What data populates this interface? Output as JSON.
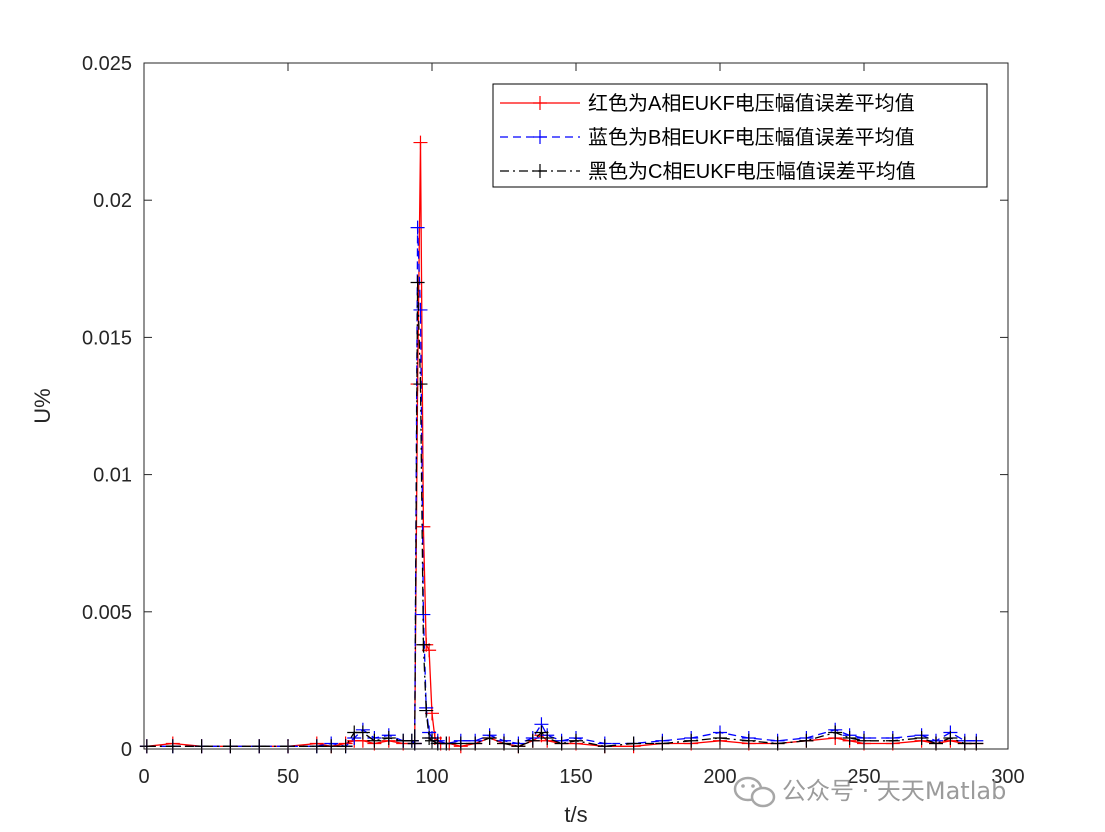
{
  "chart_data": {
    "type": "line",
    "xlabel": "t/s",
    "ylabel": "U%",
    "xlim": [
      0,
      300
    ],
    "ylim": [
      0,
      0.025
    ],
    "xticks": [
      "0",
      "50",
      "100",
      "150",
      "200",
      "250",
      "300"
    ],
    "yticks": [
      "0",
      "0.005",
      "0.01",
      "0.015",
      "0.02",
      "0.025"
    ],
    "grid": false,
    "legend_position": "top-right",
    "marker": "+",
    "series": [
      {
        "name": "红色为A相EUKF电压幅值误差平均值",
        "color": "#ff0000",
        "line_style": "solid",
        "x": [
          1,
          10,
          20,
          30,
          40,
          50,
          60,
          65,
          70,
          73,
          76,
          80,
          85,
          90,
          94,
          95,
          96,
          97,
          98,
          99,
          100,
          101,
          103,
          106,
          110,
          115,
          120,
          125,
          130,
          135,
          138,
          140,
          145,
          150,
          160,
          170,
          180,
          190,
          200,
          210,
          220,
          230,
          240,
          245,
          250,
          260,
          270,
          275,
          280,
          285,
          289
        ],
        "y": [
          0.0001,
          0.0002,
          0.0001,
          0.0001,
          0.0001,
          0.0001,
          0.0002,
          0.0001,
          0.0002,
          0.0003,
          0.0003,
          0.0002,
          0.0003,
          0.0002,
          0.0002,
          0.0133,
          0.0221,
          0.0081,
          0.0038,
          0.0036,
          0.0013,
          0.0004,
          0.0002,
          0.0002,
          0.0001,
          0.0002,
          0.0004,
          0.0002,
          0.0001,
          0.0003,
          0.0005,
          0.0003,
          0.0002,
          0.0002,
          0.0001,
          0.0001,
          0.0002,
          0.0002,
          0.0003,
          0.0002,
          0.0002,
          0.0003,
          0.0004,
          0.0003,
          0.0002,
          0.0002,
          0.0003,
          0.0002,
          0.0003,
          0.0002,
          0.0002
        ]
      },
      {
        "name": "蓝色为B相EUKF电压幅值误差平均值",
        "color": "#0000ff",
        "line_style": "dashed",
        "x": [
          1,
          10,
          20,
          30,
          40,
          50,
          60,
          65,
          70,
          73,
          76,
          80,
          85,
          90,
          93,
          94,
          95,
          96,
          97,
          98,
          99,
          100,
          102,
          105,
          110,
          115,
          120,
          125,
          130,
          135,
          138,
          140,
          145,
          150,
          160,
          170,
          180,
          190,
          200,
          210,
          220,
          230,
          240,
          245,
          250,
          260,
          270,
          275,
          280,
          285,
          289
        ],
        "y": [
          0.0001,
          0.0001,
          0.0001,
          0.0001,
          0.0001,
          0.0001,
          0.0001,
          0.0002,
          0.0001,
          0.0004,
          0.0007,
          0.0004,
          0.0005,
          0.0003,
          0.0003,
          0.0002,
          0.019,
          0.016,
          0.0049,
          0.0015,
          0.0006,
          0.0004,
          0.0003,
          0.0002,
          0.0003,
          0.0003,
          0.0005,
          0.0003,
          0.0002,
          0.0004,
          0.0009,
          0.0005,
          0.0003,
          0.0004,
          0.0002,
          0.0002,
          0.0003,
          0.0004,
          0.0006,
          0.0004,
          0.0003,
          0.0004,
          0.0007,
          0.0005,
          0.0004,
          0.0004,
          0.0005,
          0.0003,
          0.0006,
          0.0003,
          0.0003
        ]
      },
      {
        "name": "黑色为C相EUKF电压幅值误差平均值",
        "color": "#000000",
        "line_style": "dashdot",
        "x": [
          1,
          10,
          20,
          30,
          40,
          50,
          60,
          65,
          70,
          73,
          76,
          80,
          85,
          90,
          93,
          94,
          95,
          96,
          97,
          98,
          99,
          100,
          102,
          105,
          110,
          115,
          120,
          125,
          130,
          135,
          138,
          140,
          145,
          150,
          160,
          170,
          180,
          190,
          200,
          210,
          220,
          230,
          240,
          245,
          250,
          260,
          270,
          275,
          280,
          285,
          289
        ],
        "y": [
          0.0001,
          0.0001,
          0.0001,
          0.0001,
          0.0001,
          0.0001,
          0.0001,
          0.0001,
          0.0001,
          0.0006,
          0.0006,
          0.0003,
          0.0004,
          0.0003,
          0.0003,
          0.0002,
          0.017,
          0.0133,
          0.0038,
          0.0014,
          0.0004,
          0.0003,
          0.0002,
          0.0002,
          0.0002,
          0.0002,
          0.0004,
          0.0002,
          0.0001,
          0.0003,
          0.0006,
          0.0004,
          0.0002,
          0.0003,
          0.0001,
          0.0002,
          0.0002,
          0.0003,
          0.0004,
          0.0003,
          0.0002,
          0.0003,
          0.0006,
          0.0004,
          0.0003,
          0.0003,
          0.0004,
          0.0002,
          0.0004,
          0.0002,
          0.0002
        ]
      }
    ]
  },
  "watermark": {
    "text": "公众号 · 天天Matlab",
    "icon": "wechat-icon"
  }
}
